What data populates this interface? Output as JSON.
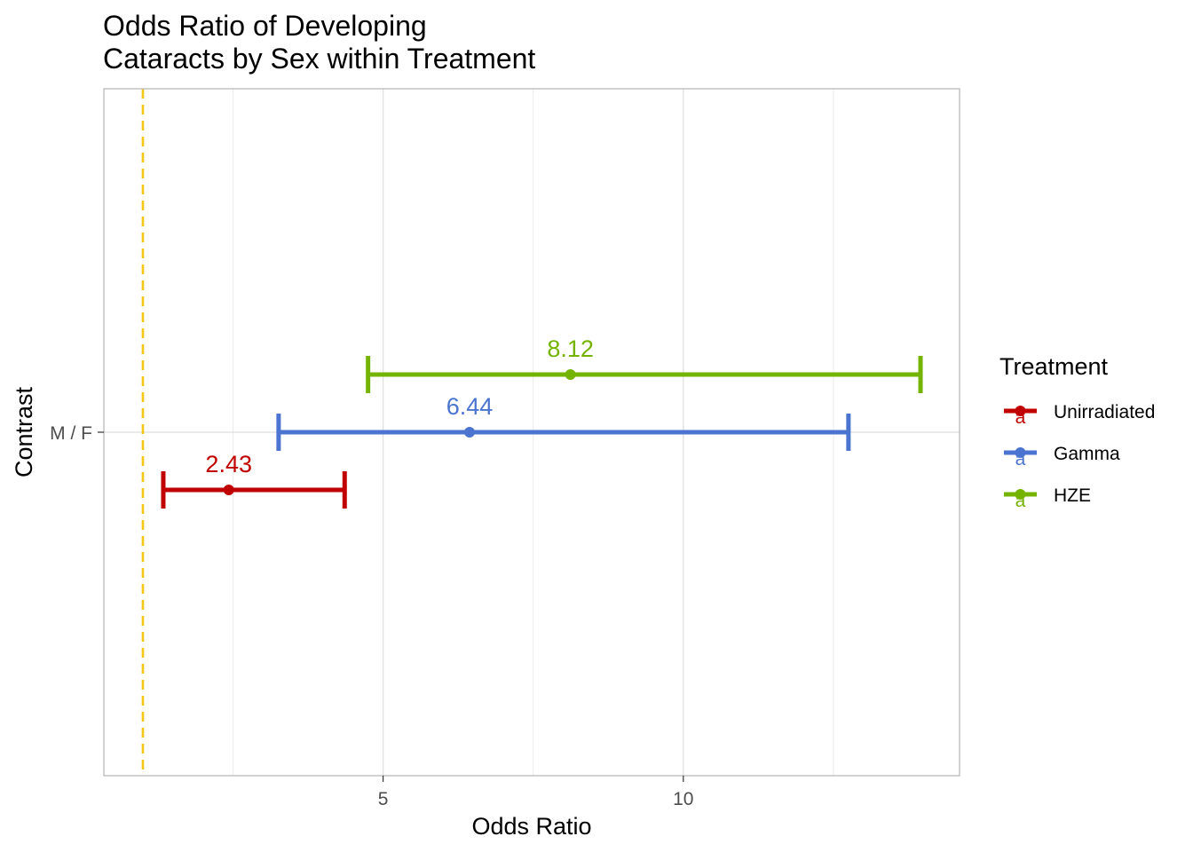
{
  "chart_data": {
    "type": "errorbar",
    "title_lines": [
      "Odds Ratio of Developing",
      "Cataracts by Sex within Treatment"
    ],
    "xlabel": "Odds Ratio",
    "ylabel": "Contrast",
    "xlim": [
      0.35,
      14.6
    ],
    "x_ticks": [
      5,
      10
    ],
    "x_minor_ticks": [
      2.5,
      7.5,
      12.5
    ],
    "x_tick_labels": [
      "5",
      "10"
    ],
    "categories": [
      "M / F"
    ],
    "reference_line": {
      "x": 1,
      "color": "#F5C518",
      "style": "dashed"
    },
    "grid": true,
    "legend": {
      "title": "Treatment",
      "placement": "right",
      "key_glyph": "a"
    },
    "series": [
      {
        "name": "Unirradiated",
        "color": "#C00000",
        "estimate": 2.43,
        "lower": 1.34,
        "upper": 4.36,
        "label": "2.43"
      },
      {
        "name": "Gamma",
        "color": "#4A74CF",
        "estimate": 6.44,
        "lower": 3.26,
        "upper": 12.75,
        "label": "6.44"
      },
      {
        "name": "HZE",
        "color": "#74B300",
        "estimate": 8.12,
        "lower": 4.75,
        "upper": 13.95,
        "label": "8.12"
      }
    ]
  }
}
